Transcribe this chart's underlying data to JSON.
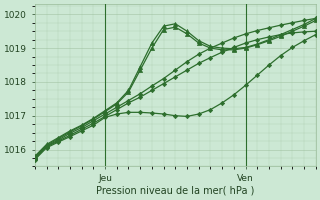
{
  "title": "",
  "xlabel": "Pression niveau de la mer( hPa )",
  "ylabel": "",
  "bg_color": "#cce8d4",
  "grid_color": "#99bb99",
  "line_color": "#2d6e2d",
  "marker_color": "#2d6e2d",
  "ylim": [
    1015.5,
    1020.3
  ],
  "xlim": [
    0,
    48
  ],
  "xtick_positions": [
    12,
    36
  ],
  "xtick_labels": [
    "Jeu",
    "Ven"
  ],
  "ytick_positions": [
    1016,
    1017,
    1018,
    1019,
    1020
  ],
  "ytick_labels": [
    "1016",
    "1017",
    "1018",
    "1019",
    "1020"
  ],
  "vline_positions": [
    12,
    36
  ],
  "series": [
    {
      "x": [
        0,
        2,
        4,
        6,
        8,
        10,
        12,
        14,
        16,
        18,
        20,
        22,
        24,
        26,
        28,
        30,
        32,
        34,
        36,
        38,
        40,
        42,
        44,
        46,
        48
      ],
      "y": [
        1015.75,
        1016.1,
        1016.28,
        1016.48,
        1016.65,
        1016.85,
        1017.05,
        1017.25,
        1017.45,
        1017.65,
        1017.88,
        1018.1,
        1018.35,
        1018.6,
        1018.82,
        1019.0,
        1019.15,
        1019.3,
        1019.42,
        1019.52,
        1019.6,
        1019.68,
        1019.75,
        1019.82,
        1019.88
      ],
      "marker": "D",
      "ms": 2.2,
      "lw": 0.9
    },
    {
      "x": [
        0,
        2,
        4,
        6,
        8,
        10,
        12,
        14,
        16,
        18,
        20,
        22,
        24,
        26,
        28,
        30,
        32,
        34,
        36,
        38,
        40,
        42,
        44,
        46,
        48
      ],
      "y": [
        1015.72,
        1016.08,
        1016.25,
        1016.42,
        1016.6,
        1016.78,
        1016.98,
        1017.18,
        1017.38,
        1017.55,
        1017.75,
        1017.95,
        1018.15,
        1018.35,
        1018.55,
        1018.72,
        1018.88,
        1019.02,
        1019.15,
        1019.25,
        1019.33,
        1019.4,
        1019.45,
        1019.48,
        1019.5
      ],
      "marker": "D",
      "ms": 2.2,
      "lw": 0.9
    },
    {
      "x": [
        0,
        2,
        4,
        6,
        8,
        10,
        12,
        14,
        16,
        18,
        20,
        22,
        24,
        26,
        28,
        30,
        32,
        34,
        36,
        38,
        40,
        42,
        44,
        46,
        48
      ],
      "y": [
        1015.78,
        1016.12,
        1016.32,
        1016.52,
        1016.7,
        1016.9,
        1017.12,
        1017.35,
        1017.7,
        1018.35,
        1019.0,
        1019.55,
        1019.62,
        1019.42,
        1019.15,
        1019.0,
        1018.95,
        1018.95,
        1019.0,
        1019.1,
        1019.22,
        1019.35,
        1019.5,
        1019.65,
        1019.82
      ],
      "marker": "^",
      "ms": 3.0,
      "lw": 0.9
    },
    {
      "x": [
        0,
        2,
        4,
        6,
        8,
        10,
        12,
        14,
        16,
        18,
        20,
        22,
        24,
        26,
        28,
        30,
        32,
        34,
        36,
        38,
        40,
        42,
        44,
        46,
        48
      ],
      "y": [
        1015.8,
        1016.15,
        1016.35,
        1016.55,
        1016.72,
        1016.92,
        1017.15,
        1017.38,
        1017.75,
        1018.45,
        1019.15,
        1019.65,
        1019.72,
        1019.5,
        1019.22,
        1019.05,
        1019.0,
        1018.98,
        1019.02,
        1019.12,
        1019.25,
        1019.4,
        1019.55,
        1019.7,
        1019.88
      ],
      "marker": "^",
      "ms": 3.0,
      "lw": 0.9
    },
    {
      "x": [
        0,
        2,
        4,
        6,
        8,
        10,
        12,
        14,
        16,
        18,
        20,
        22,
        24,
        26,
        28,
        30,
        32,
        34,
        36,
        38,
        40,
        42,
        44,
        46,
        48
      ],
      "y": [
        1015.7,
        1016.05,
        1016.22,
        1016.38,
        1016.55,
        1016.72,
        1016.95,
        1017.05,
        1017.1,
        1017.1,
        1017.08,
        1017.05,
        1017.0,
        1016.98,
        1017.05,
        1017.18,
        1017.38,
        1017.62,
        1017.9,
        1018.2,
        1018.5,
        1018.78,
        1019.02,
        1019.22,
        1019.4
      ],
      "marker": "D",
      "ms": 2.2,
      "lw": 0.9
    }
  ]
}
